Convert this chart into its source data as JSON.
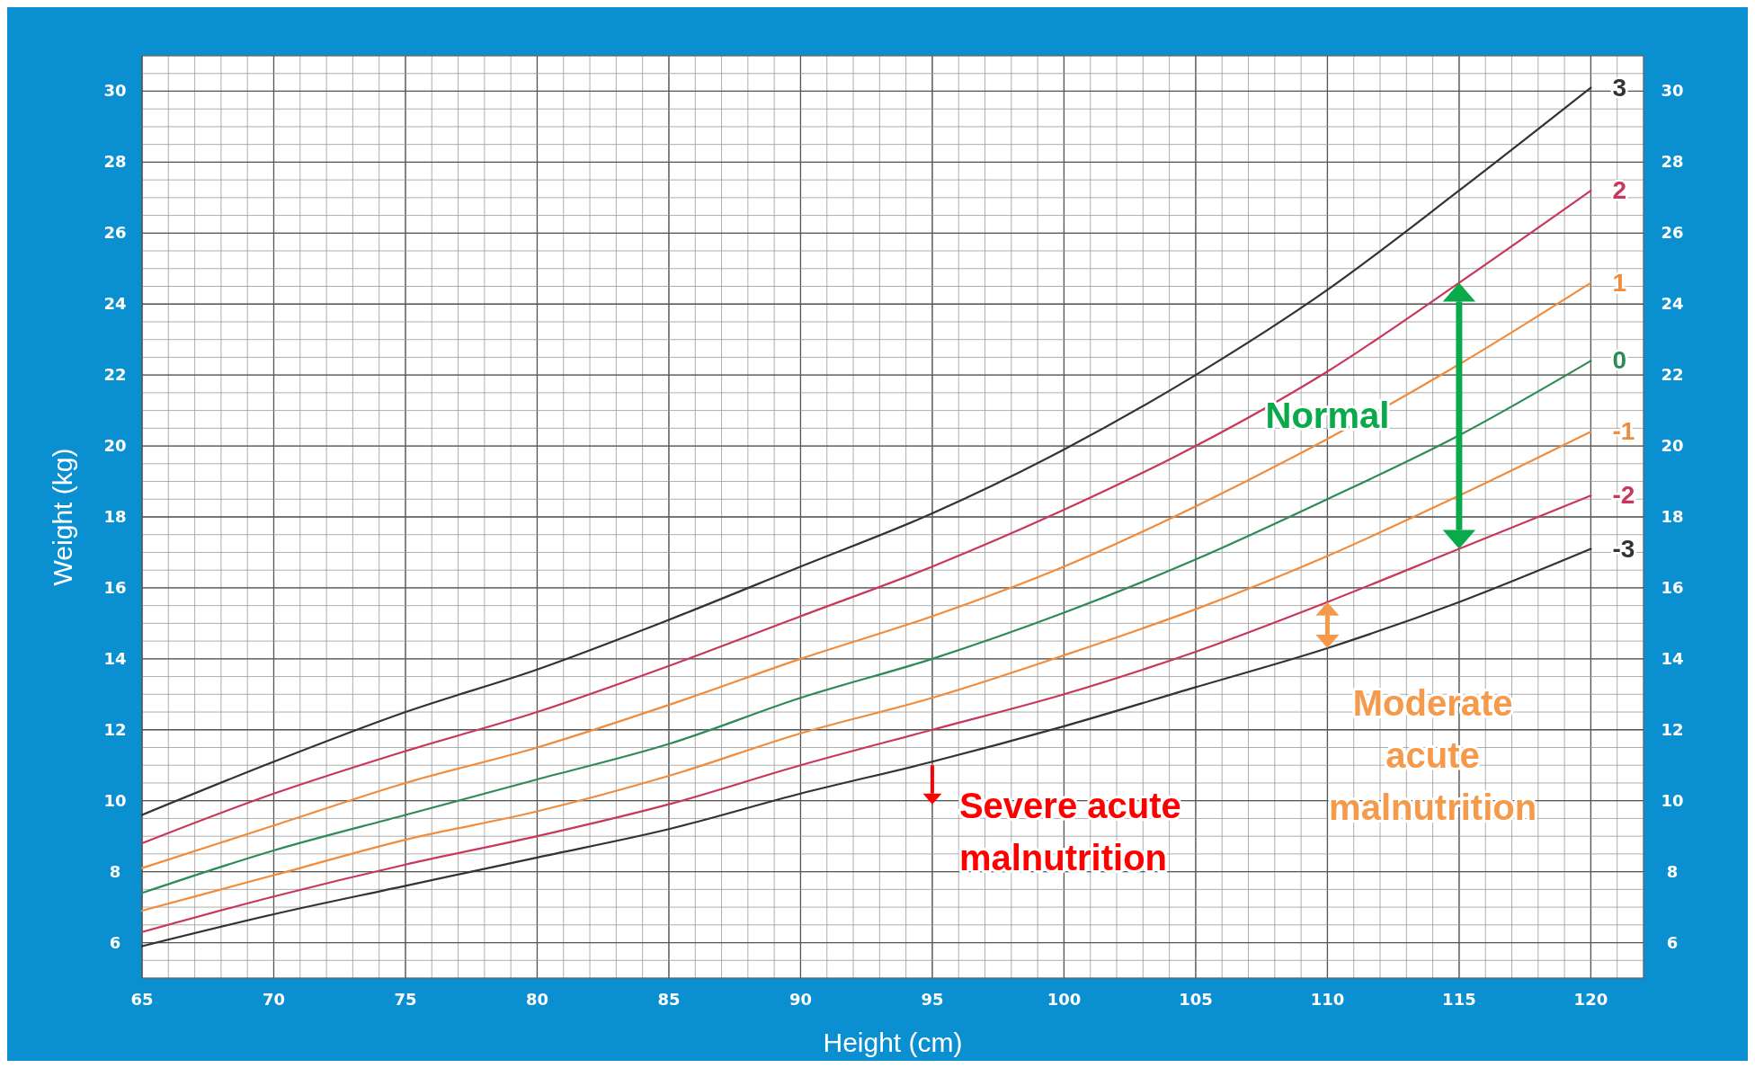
{
  "chart_data": {
    "type": "line",
    "xlabel": "Height (cm)",
    "ylabel": "Weight (kg)",
    "x": [
      65,
      70,
      75,
      80,
      85,
      90,
      95,
      100,
      105,
      110,
      115,
      120
    ],
    "series": [
      {
        "name": "3",
        "color": "#333333",
        "values": [
          9.6,
          11.1,
          12.5,
          13.7,
          15.1,
          16.6,
          18.1,
          19.9,
          22.0,
          24.4,
          27.2,
          30.1
        ]
      },
      {
        "name": "2",
        "color": "#c8385a",
        "values": [
          8.8,
          10.2,
          11.4,
          12.5,
          13.8,
          15.2,
          16.6,
          18.2,
          20.0,
          22.1,
          24.6,
          27.2
        ]
      },
      {
        "name": "1",
        "color": "#f08c3c",
        "values": [
          8.1,
          9.3,
          10.5,
          11.5,
          12.7,
          14.0,
          15.2,
          16.6,
          18.3,
          20.2,
          22.3,
          24.6
        ]
      },
      {
        "name": "0",
        "color": "#2e8b57",
        "values": [
          7.4,
          8.6,
          9.6,
          10.6,
          11.6,
          12.9,
          14.0,
          15.3,
          16.8,
          18.5,
          20.3,
          22.4
        ]
      },
      {
        "name": "-1",
        "color": "#f08c3c",
        "values": [
          6.9,
          7.9,
          8.9,
          9.7,
          10.7,
          11.9,
          12.9,
          14.1,
          15.4,
          16.9,
          18.6,
          20.4
        ]
      },
      {
        "name": "-2",
        "color": "#c8385a",
        "values": [
          6.3,
          7.3,
          8.2,
          9.0,
          9.9,
          11.0,
          12.0,
          13.0,
          14.2,
          15.6,
          17.1,
          18.6
        ]
      },
      {
        "name": "-3",
        "color": "#333333",
        "values": [
          5.9,
          6.8,
          7.6,
          8.4,
          9.2,
          10.2,
          11.1,
          12.1,
          13.2,
          14.3,
          15.6,
          17.1
        ]
      }
    ],
    "xlim": [
      65,
      122
    ],
    "xticks": [
      65,
      70,
      75,
      80,
      85,
      90,
      95,
      100,
      105,
      110,
      115,
      120
    ],
    "ylim": [
      5,
      31
    ],
    "yticks": [
      6,
      8,
      10,
      12,
      14,
      16,
      18,
      20,
      22,
      24,
      26,
      28,
      30
    ],
    "y2lim": [
      5,
      31
    ],
    "y2ticks": [
      6,
      8,
      10,
      12,
      14,
      16,
      18,
      20,
      22,
      24,
      26,
      28,
      30
    ],
    "grid": true,
    "marker": "none",
    "line_style": "solid",
    "annotations": [
      "Normal",
      "Moderate acute malnutrition",
      "Severe acute malnutrition"
    ]
  }
}
